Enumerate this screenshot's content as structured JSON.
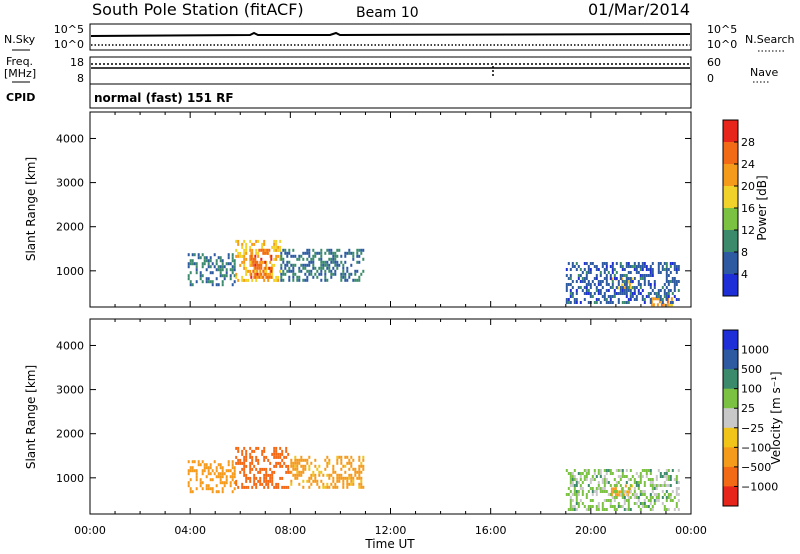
{
  "header": {
    "title": "South Pole Station (fitACF)",
    "beam": "Beam 10",
    "date": "01/Mar/2014"
  },
  "sky_panel": {
    "left_label": "N.Sky",
    "right_label": "N.Search",
    "ticks_left": [
      "10^5",
      "10^0"
    ],
    "ticks_right": [
      "10^5",
      "10^0"
    ]
  },
  "freq_panel": {
    "left_label_line1": "Freq.",
    "left_label_line2": "[MHz]",
    "ticks_left": [
      "18",
      "8"
    ],
    "ticks_right": [
      "60",
      "0"
    ],
    "right_label": "Nave"
  },
  "cpid": {
    "label": "CPID",
    "text": "normal (fast) 151 RF"
  },
  "colors": {
    "power": [
      "#1e2fd8",
      "#2d5aa0",
      "#3a8a6b",
      "#7cc242",
      "#f0d22b",
      "#f59b1c",
      "#f26a16",
      "#e8251a"
    ],
    "velocity": [
      "#e8251a",
      "#f26a16",
      "#f59b1c",
      "#f0c419",
      "#c8c8c8",
      "#7cc242",
      "#3a8a6b",
      "#2d5aa0",
      "#1e2fd8"
    ]
  },
  "chart_data": [
    {
      "type": "heatmap",
      "panel": "power",
      "xlabel": "Time UT",
      "ylabel": "Slant Range [km]",
      "x_ticks": [
        "00:00",
        "04:00",
        "08:00",
        "12:00",
        "16:00",
        "20:00",
        "00:00"
      ],
      "x_range_hours": [
        0,
        24
      ],
      "y_range_km": [
        180,
        4600
      ],
      "y_ticks": [
        1000,
        2000,
        3000,
        4000
      ],
      "colorbar_label": "Power [dB]",
      "colorbar_ticks": [
        "4",
        "8",
        "12",
        "16",
        "20",
        "24",
        "28"
      ],
      "colorbar_range": [
        0,
        32
      ],
      "regions": [
        {
          "t0": 3.9,
          "t1": 5.8,
          "r0": 700,
          "r1": 1400,
          "v": 8
        },
        {
          "t0": 5.8,
          "t1": 7.6,
          "r0": 750,
          "r1": 1700,
          "v": 20
        },
        {
          "t0": 6.4,
          "t1": 7.2,
          "r0": 850,
          "r1": 1500,
          "v": 26
        },
        {
          "t0": 7.6,
          "t1": 10.9,
          "r0": 800,
          "r1": 1500,
          "v": 8
        },
        {
          "t0": 20.8,
          "t1": 21.6,
          "r0": 600,
          "r1": 850,
          "v": 20
        },
        {
          "t0": 22.4,
          "t1": 23.2,
          "r0": 200,
          "r1": 400,
          "v": 22
        },
        {
          "t0": 19.0,
          "t1": 23.5,
          "r0": 250,
          "r1": 1200,
          "v": 6
        }
      ]
    },
    {
      "type": "heatmap",
      "panel": "velocity",
      "xlabel": "Time UT",
      "ylabel": "Slant Range [km]",
      "x_ticks": [
        "00:00",
        "04:00",
        "08:00",
        "12:00",
        "16:00",
        "20:00",
        "00:00"
      ],
      "x_range_hours": [
        0,
        24
      ],
      "y_range_km": [
        180,
        4600
      ],
      "y_ticks": [
        1000,
        2000,
        3000,
        4000
      ],
      "colorbar_label": "Velocity [m s⁻¹]",
      "colorbar_ticks": [
        "1000",
        "500",
        "100",
        "25",
        "−25",
        "−100",
        "−500",
        "−1000"
      ],
      "regions": [
        {
          "t0": 3.9,
          "t1": 5.8,
          "r0": 700,
          "r1": 1400,
          "v": -400
        },
        {
          "t0": 5.8,
          "t1": 8.0,
          "r0": 750,
          "r1": 1700,
          "v": -600
        },
        {
          "t0": 8.0,
          "t1": 10.9,
          "r0": 800,
          "r1": 1500,
          "v": -150
        },
        {
          "t0": 20.8,
          "t1": 21.6,
          "r0": 600,
          "r1": 850,
          "v": -150
        },
        {
          "t0": 19.0,
          "t1": 23.5,
          "r0": 250,
          "r1": 1200,
          "v": 50
        }
      ]
    }
  ]
}
